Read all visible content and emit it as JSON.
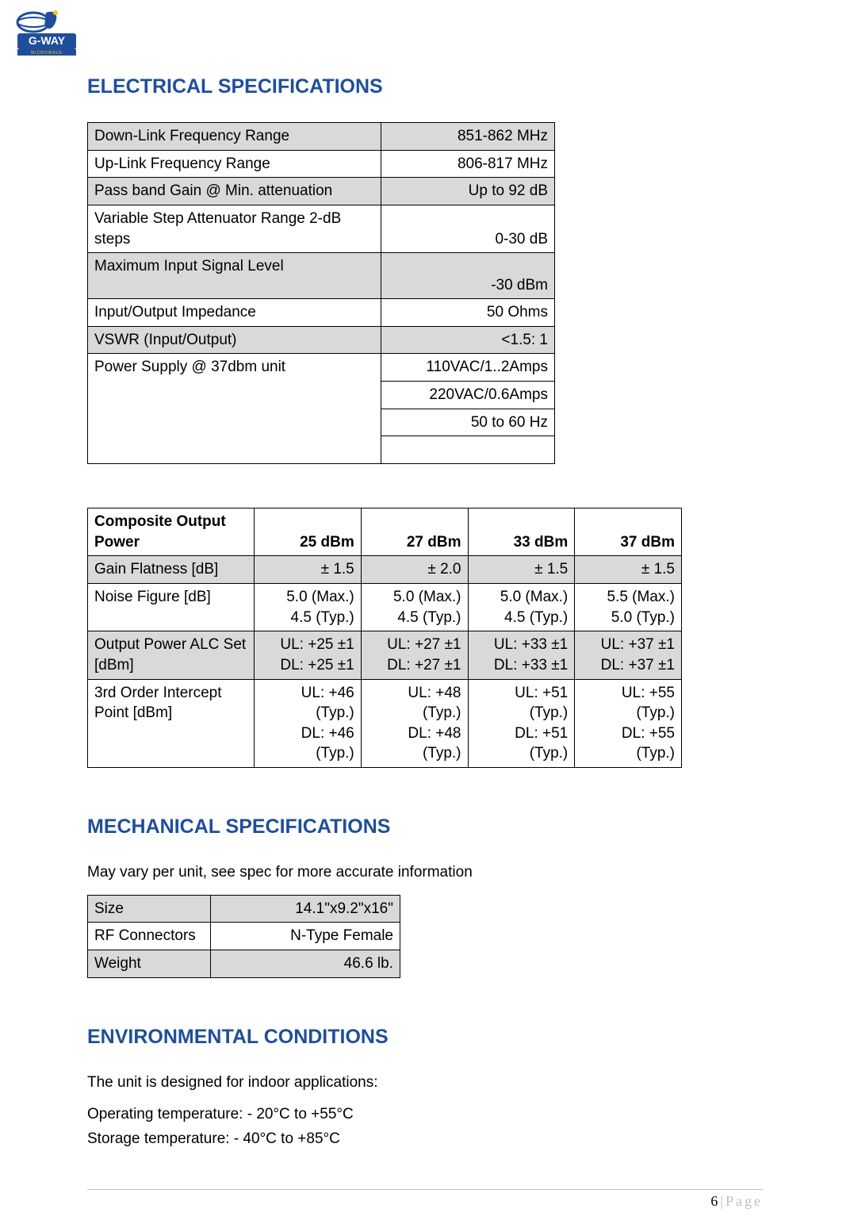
{
  "brand": {
    "name": "G-WAY",
    "subname": "MICROWAVE",
    "logo_colors": {
      "blue": "#1f4e9b",
      "yellow": "#f9c600",
      "white": "#ffffff"
    }
  },
  "colors": {
    "heading": "#1f4e9b",
    "text": "#000000",
    "shade": "#d9d9d9",
    "border": "#000000",
    "footer_gray": "#bfbfbf",
    "background": "#ffffff"
  },
  "typography": {
    "body_family": "Arial",
    "heading_size_pt": 18,
    "body_size_pt": 14
  },
  "sections": {
    "electrical": {
      "title": "ELECTRICAL SPECIFICATIONS",
      "rows": [
        {
          "label": "Down-Link Frequency Range",
          "value": "851-862 MHz",
          "shaded": true
        },
        {
          "label": "Up-Link Frequency Range",
          "value": "806-817 MHz",
          "shaded": false
        },
        {
          "label": "Pass band Gain @ Min. attenuation",
          "value": "Up to 92 dB",
          "shaded": true
        },
        {
          "label": "Variable Step Attenuator Range 2-dB steps",
          "value": "0-30 dB",
          "shaded": false
        },
        {
          "label": "Maximum Input Signal Level",
          "value": "-30 dBm",
          "shaded": true,
          "tall": true
        },
        {
          "label": "Input/Output Impedance",
          "value": "50 Ohms",
          "shaded": false
        },
        {
          "label": "VSWR (Input/Output)",
          "value": "<1.5: 1",
          "shaded": true
        }
      ],
      "power_supply": {
        "label": "Power Supply @ 37dbm unit",
        "values": [
          "110VAC/1..2Amps",
          "220VAC/0.6Amps",
          "50 to 60 Hz",
          ""
        ]
      }
    },
    "composite": {
      "header_label": "Composite Output Power",
      "columns": [
        "25 dBm",
        "27 dBm",
        "33 dBm",
        "37 dBm"
      ],
      "rows": [
        {
          "label": "Gain Flatness [dB]",
          "shaded": true,
          "cells": [
            "± 1.5",
            "± 2.0",
            "± 1.5",
            "± 1.5"
          ]
        },
        {
          "label": "Noise Figure [dB]",
          "shaded": false,
          "cells": [
            "5.0 (Max.)\n4.5 (Typ.)",
            "5.0 (Max.)\n4.5 (Typ.)",
            "5.0 (Max.)\n4.5 (Typ.)",
            "5.5 (Max.)\n5.0 (Typ.)"
          ]
        },
        {
          "label": "Output Power ALC Set [dBm]",
          "shaded": true,
          "cells": [
            "UL: +25 ±1\nDL: +25 ±1",
            "UL: +27 ±1\nDL: +27 ±1",
            "UL: +33 ±1\nDL: +33 ±1",
            "UL: +37 ±1\nDL: +37 ±1"
          ]
        },
        {
          "label": "3rd Order Intercept Point [dBm]",
          "shaded": false,
          "cells": [
            "UL: +46 (Typ.)\nDL: +46 (Typ.)",
            "UL: +48 (Typ.)\nDL: +48 (Typ.)",
            "UL: +51 (Typ.)\nDL: +51 (Typ.)",
            "UL: +55 (Typ.)\nDL: +55 (Typ.)"
          ]
        }
      ]
    },
    "mechanical": {
      "title": "MECHANICAL SPECIFICATIONS",
      "note": "May vary per unit, see spec for more accurate information",
      "rows": [
        {
          "label": "Size",
          "value": "14.1\"x9.2\"x16\"",
          "shaded": true
        },
        {
          "label": "RF Connectors",
          "value": "N-Type Female",
          "shaded": false
        },
        {
          "label": "Weight",
          "value": "46.6 lb.",
          "shaded": true
        }
      ]
    },
    "environmental": {
      "title": "ENVIRONMENTAL CONDITIONS",
      "intro": "The unit is designed for indoor applications:",
      "operating": "Operating temperature: - 20°C to +55°C",
      "storage": "Storage temperature: - 40°C to +85°C"
    }
  },
  "footer": {
    "page_number": "6",
    "page_word": "Page"
  }
}
